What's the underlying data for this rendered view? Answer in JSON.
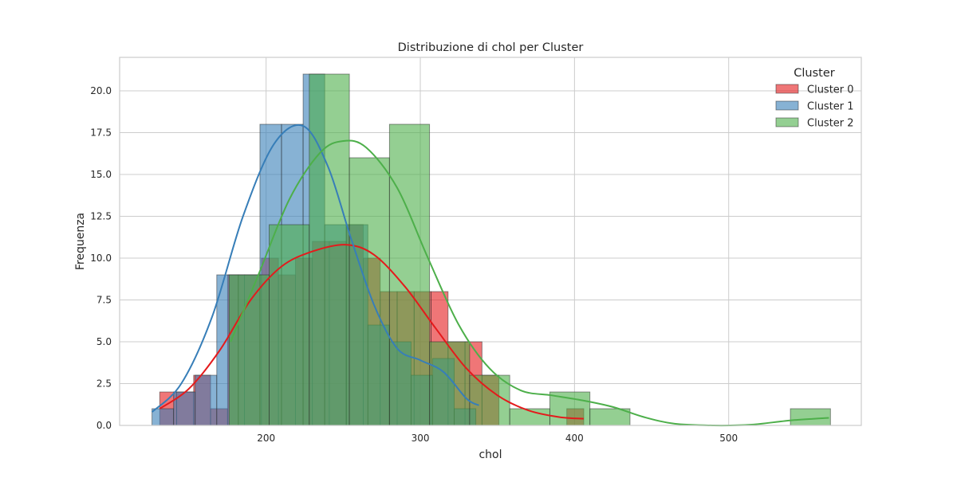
{
  "chart_data": {
    "type": "bar",
    "subtype": "histogram-with-kde",
    "title": "Distribuzione di chol per Cluster",
    "xlabel": "chol",
    "ylabel": "Frequenza",
    "xlim": [
      105,
      586
    ],
    "ylim": [
      0,
      22
    ],
    "x_ticks": [
      200,
      300,
      400,
      500
    ],
    "x_tick_labels": [
      "200",
      "300",
      "400",
      "500"
    ],
    "y_ticks": [
      0,
      2.5,
      5,
      7.5,
      10,
      12.5,
      15,
      17.5,
      20
    ],
    "y_tick_labels": [
      "0.0",
      "2.5",
      "5.0",
      "7.5",
      "10.0",
      "12.5",
      "15.0",
      "17.5",
      "20.0"
    ],
    "grid": true,
    "legend": {
      "title": "Cluster",
      "placement": "top-right"
    },
    "series": [
      {
        "name": "Cluster 0",
        "color": "#e41a1c",
        "bins": [
          {
            "x0": 131,
            "x1": 142,
            "count": 2
          },
          {
            "x0": 142,
            "x1": 153,
            "count": 2
          },
          {
            "x0": 153,
            "x1": 164,
            "count": 3
          },
          {
            "x0": 164,
            "x1": 175,
            "count": 1
          },
          {
            "x0": 175,
            "x1": 186,
            "count": 9
          },
          {
            "x0": 186,
            "x1": 197,
            "count": 9
          },
          {
            "x0": 197,
            "x1": 208,
            "count": 10
          },
          {
            "x0": 208,
            "x1": 219,
            "count": 9
          },
          {
            "x0": 219,
            "x1": 230,
            "count": 10
          },
          {
            "x0": 230,
            "x1": 241,
            "count": 11
          },
          {
            "x0": 241,
            "x1": 252,
            "count": 11
          },
          {
            "x0": 252,
            "x1": 263,
            "count": 12
          },
          {
            "x0": 263,
            "x1": 274,
            "count": 10
          },
          {
            "x0": 274,
            "x1": 285,
            "count": 8
          },
          {
            "x0": 285,
            "x1": 296,
            "count": 8
          },
          {
            "x0": 296,
            "x1": 307,
            "count": 8
          },
          {
            "x0": 307,
            "x1": 318,
            "count": 8
          },
          {
            "x0": 318,
            "x1": 329,
            "count": 5
          },
          {
            "x0": 329,
            "x1": 340,
            "count": 5
          },
          {
            "x0": 340,
            "x1": 351,
            "count": 3
          },
          {
            "x0": 351,
            "x1": 362,
            "count": 0
          },
          {
            "x0": 362,
            "x1": 373,
            "count": 0
          },
          {
            "x0": 373,
            "x1": 384,
            "count": 0
          },
          {
            "x0": 384,
            "x1": 395,
            "count": 0
          },
          {
            "x0": 395,
            "x1": 406,
            "count": 1
          }
        ],
        "kde": [
          [
            131,
            1
          ],
          [
            150,
            2.2
          ],
          [
            170,
            4.5
          ],
          [
            190,
            7.5
          ],
          [
            210,
            9.5
          ],
          [
            230,
            10.4
          ],
          [
            252,
            10.8
          ],
          [
            270,
            10.2
          ],
          [
            290,
            8.3
          ],
          [
            310,
            5.8
          ],
          [
            330,
            3.4
          ],
          [
            350,
            1.8
          ],
          [
            370,
            0.9
          ],
          [
            390,
            0.5
          ],
          [
            406,
            0.4
          ]
        ]
      },
      {
        "name": "Cluster 1",
        "color": "#377eb8",
        "bins": [
          {
            "x0": 126,
            "x1": 140,
            "count": 1
          },
          {
            "x0": 140,
            "x1": 154,
            "count": 2
          },
          {
            "x0": 154,
            "x1": 168,
            "count": 3
          },
          {
            "x0": 168,
            "x1": 182,
            "count": 9
          },
          {
            "x0": 182,
            "x1": 196,
            "count": 9
          },
          {
            "x0": 196,
            "x1": 210,
            "count": 18
          },
          {
            "x0": 210,
            "x1": 224,
            "count": 18
          },
          {
            "x0": 224,
            "x1": 238,
            "count": 21
          },
          {
            "x0": 238,
            "x1": 252,
            "count": 12
          },
          {
            "x0": 252,
            "x1": 266,
            "count": 12
          },
          {
            "x0": 266,
            "x1": 280,
            "count": 6
          },
          {
            "x0": 280,
            "x1": 294,
            "count": 5
          },
          {
            "x0": 294,
            "x1": 308,
            "count": 3
          },
          {
            "x0": 308,
            "x1": 322,
            "count": 4
          },
          {
            "x0": 322,
            "x1": 336,
            "count": 1
          }
        ],
        "kde": [
          [
            126,
            0.8
          ],
          [
            145,
            2.5
          ],
          [
            165,
            6.5
          ],
          [
            185,
            12.5
          ],
          [
            205,
            16.8
          ],
          [
            224,
            17.9
          ],
          [
            240,
            15.5
          ],
          [
            255,
            11.2
          ],
          [
            270,
            7.2
          ],
          [
            285,
            4.6
          ],
          [
            300,
            3.9
          ],
          [
            315,
            3.2
          ],
          [
            330,
            1.6
          ],
          [
            338,
            1.2
          ]
        ]
      },
      {
        "name": "Cluster 2",
        "color": "#4daf4a",
        "bins": [
          {
            "x0": 176,
            "x1": 202,
            "count": 9
          },
          {
            "x0": 202,
            "x1": 228,
            "count": 12
          },
          {
            "x0": 228,
            "x1": 254,
            "count": 21
          },
          {
            "x0": 254,
            "x1": 280,
            "count": 16
          },
          {
            "x0": 280,
            "x1": 306,
            "count": 18
          },
          {
            "x0": 306,
            "x1": 332,
            "count": 5
          },
          {
            "x0": 332,
            "x1": 358,
            "count": 3
          },
          {
            "x0": 358,
            "x1": 384,
            "count": 1
          },
          {
            "x0": 384,
            "x1": 410,
            "count": 2
          },
          {
            "x0": 410,
            "x1": 436,
            "count": 1
          },
          {
            "x0": 436,
            "x1": 462,
            "count": 0
          },
          {
            "x0": 462,
            "x1": 488,
            "count": 0
          },
          {
            "x0": 488,
            "x1": 514,
            "count": 0
          },
          {
            "x0": 514,
            "x1": 540,
            "count": 0
          },
          {
            "x0": 540,
            "x1": 566,
            "count": 1
          }
        ],
        "kde": [
          [
            177,
            5
          ],
          [
            195,
            9
          ],
          [
            215,
            13.5
          ],
          [
            235,
            16.3
          ],
          [
            250,
            17
          ],
          [
            265,
            16.6
          ],
          [
            285,
            14.2
          ],
          [
            305,
            10
          ],
          [
            325,
            6
          ],
          [
            345,
            3.4
          ],
          [
            365,
            2.1
          ],
          [
            385,
            1.8
          ],
          [
            405,
            1.5
          ],
          [
            425,
            1.1
          ],
          [
            445,
            0.5
          ],
          [
            465,
            0.1
          ],
          [
            490,
            0
          ],
          [
            515,
            0.05
          ],
          [
            540,
            0.3
          ],
          [
            565,
            0.45
          ]
        ]
      }
    ]
  }
}
